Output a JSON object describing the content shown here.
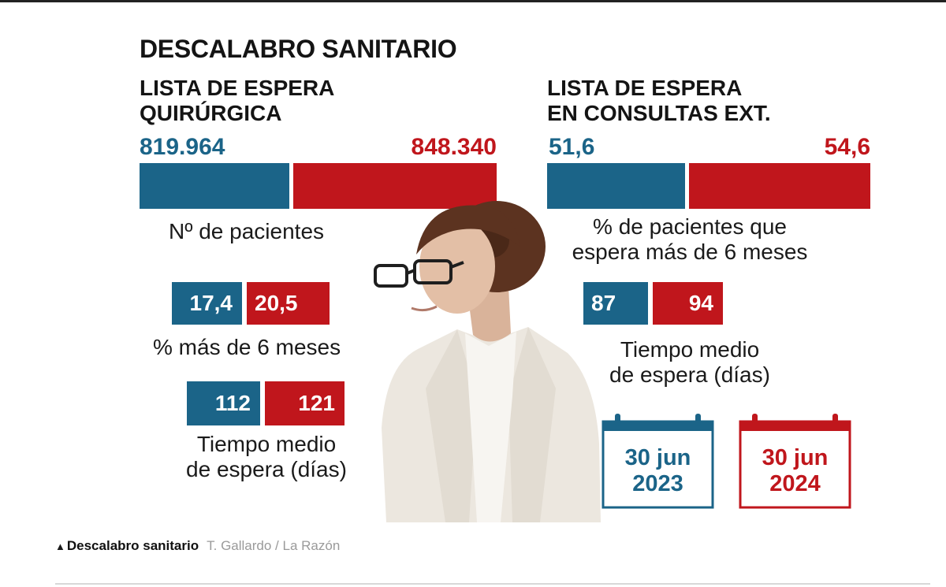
{
  "title": "DESCALABRO SANITARIO",
  "left_panel": {
    "subtitle_line1": "LISTA DE ESPERA",
    "subtitle_line2": "QUIRÚRGICA",
    "patients": {
      "v2023": "819.964",
      "v2024": "848.340",
      "label": "Nº de pacientes"
    },
    "pct_over_6": {
      "v2023": "17,4",
      "v2024": "20,5",
      "label": "% más de 6 meses"
    },
    "wait_time": {
      "v2023": "112",
      "v2024": "121",
      "label_line1": "Tiempo medio",
      "label_line2": "de espera (días)"
    }
  },
  "right_panel": {
    "subtitle_line1": "LISTA DE ESPERA",
    "subtitle_line2": "EN CONSULTAS EXT.",
    "pct_over_6": {
      "v2023": "51,6",
      "v2024": "54,6",
      "label_line1": "% de pacientes que",
      "label_line2": "espera más de 6 meses"
    },
    "wait_time": {
      "v2023": "87",
      "v2024": "94",
      "label_line1": "Tiempo medio",
      "label_line2": "de espera (días)"
    }
  },
  "legend": {
    "d2023": {
      "line1": "30 jun",
      "line2": "2023",
      "color": "#1b6488"
    },
    "d2024": {
      "line1": "30 jun",
      "line2": "2024",
      "color": "#c0161c"
    }
  },
  "caption": {
    "bold": "Descalabro sanitario",
    "credit": "T. Gallardo / La Razón"
  },
  "chart_data": [
    {
      "type": "bar",
      "subtitle": "LISTA DE ESPERA QUIRÚRGICA",
      "panels": [
        {
          "label": "Nº de pacientes",
          "categories": [
            "30 jun 2023",
            "30 jun 2024"
          ],
          "values": [
            819964,
            848340
          ]
        },
        {
          "label": "% más de 6 meses",
          "categories": [
            "30 jun 2023",
            "30 jun 2024"
          ],
          "values": [
            17.4,
            20.5
          ]
        },
        {
          "label": "Tiempo medio de espera (días)",
          "categories": [
            "30 jun 2023",
            "30 jun 2024"
          ],
          "values": [
            112,
            121
          ]
        }
      ]
    },
    {
      "type": "bar",
      "subtitle": "LISTA DE ESPERA EN CONSULTAS EXT.",
      "panels": [
        {
          "label": "% de pacientes que espera más de 6 meses",
          "categories": [
            "30 jun 2023",
            "30 jun 2024"
          ],
          "values": [
            51.6,
            54.6
          ]
        },
        {
          "label": "Tiempo medio de espera (días)",
          "categories": [
            "30 jun 2023",
            "30 jun 2024"
          ],
          "values": [
            87,
            94
          ]
        }
      ]
    }
  ]
}
